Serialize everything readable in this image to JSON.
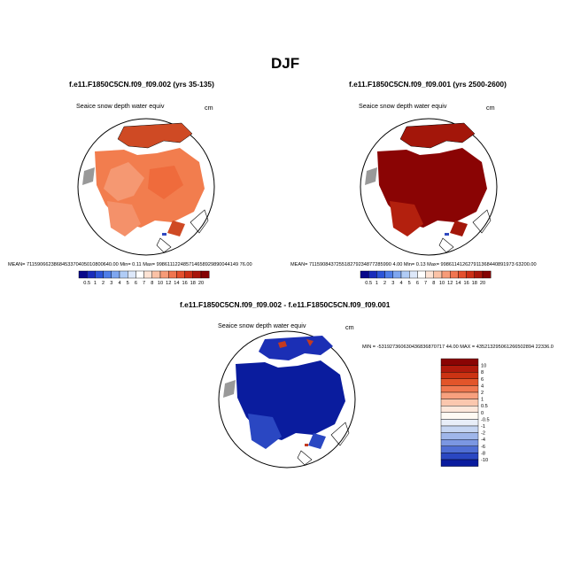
{
  "main_title": "DJF",
  "variable_label": "Seaice snow depth water equiv",
  "units_label": "cm",
  "panel_left": {
    "title": "f.e11.F1850C5CN.f09_f09.002 (yrs 35-135)",
    "stats": "MEAN= 7115906623868453370405010800640.00  Min=   0.11  Max= 998611122485714658929890044149 76.00"
  },
  "panel_right": {
    "title": "f.e11.F1850C5CN.f09_f09.001 (yrs 2500-2600)",
    "stats": "MEAN= 711590843725518279234877285990 4.00  Min=   0.13  Max= 998611412627911368440891973 63200.00"
  },
  "panel_diff": {
    "title": "f.e11.F1850C5CN.f09_f09.002 - f.e11.F1850C5CN.f09_f09.001",
    "stats": "MIN = -531927360630436836870717 44.00 MAX = 435213295061266502894 22336.0"
  },
  "colorbar_abs": {
    "labels": [
      "0.5",
      "1",
      "2",
      "3",
      "4",
      "5",
      "6",
      "7",
      "8",
      "10",
      "12",
      "14",
      "16",
      "18",
      "20"
    ],
    "colors": [
      "#08088a",
      "#1a2dbb",
      "#2d55d8",
      "#4f7ee8",
      "#7ea6f0",
      "#b0ccf6",
      "#dde8fa",
      "#ffffff",
      "#fde3d4",
      "#fbc2a6",
      "#f79b78",
      "#f07550",
      "#e4502e",
      "#cc2f16",
      "#a8150a",
      "#840202"
    ]
  },
  "colorbar_diff": {
    "labels": [
      "10",
      "8",
      "6",
      "4",
      "2",
      "1",
      "0.5",
      "0",
      "-0.5",
      "-1",
      "-2",
      "-4",
      "-6",
      "-8",
      "-10"
    ],
    "colors": [
      "#8a0404",
      "#b11a0c",
      "#cc3313",
      "#e2552a",
      "#f07850",
      "#f8a07e",
      "#fbc7ae",
      "#fde7da",
      "#fffaf3",
      "#e8eef8",
      "#c5d5f2",
      "#9fb6ea",
      "#7b97e2",
      "#4f6ed4",
      "#2a47c2",
      "#0a1c9e"
    ]
  }
}
